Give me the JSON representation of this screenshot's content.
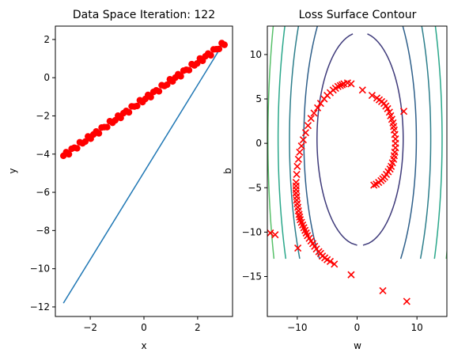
{
  "chart_data": [
    {
      "type": "scatter",
      "title": "Data Space Iteration: 122",
      "xlabel": "x",
      "ylabel": "y",
      "xlim": [
        -3.3,
        3.3
      ],
      "ylim": [
        -12.5,
        2.7
      ],
      "xticks": [
        -2,
        0,
        2
      ],
      "yticks": [
        -12,
        -10,
        -8,
        -6,
        -4,
        -2,
        0,
        2
      ],
      "grid": false,
      "colors": {
        "points": "#ff0000",
        "line": "#1f77b4"
      },
      "points": {
        "x_start": -3.0,
        "x_end": 3.0,
        "count": 60,
        "slope": 0.98,
        "intercept": -1.15,
        "noise_amplitude": 0.12
      },
      "fit_line": {
        "x": [
          -3.0,
          3.0
        ],
        "y": [
          -11.8,
          1.9
        ]
      }
    },
    {
      "type": "contour",
      "title": "Loss Surface Contour",
      "xlabel": "w",
      "ylabel": "b",
      "xlim": [
        -15,
        15
      ],
      "ylim": [
        -19.5,
        13.2
      ],
      "xticks": [
        -10,
        0,
        10
      ],
      "yticks": [
        -15,
        -10,
        -5,
        0,
        5,
        10
      ],
      "grid": false,
      "contour_center": [
        0.5,
        0.5
      ],
      "contour_levels": [
        {
          "a": 7.2,
          "b": 12.0,
          "color": "#3e3a7a"
        },
        {
          "a": 9.4,
          "b": 19.5,
          "color": "#2e5f8a"
        },
        {
          "a": 11.8,
          "b": 26.0,
          "color": "#2c7e8b"
        },
        {
          "a": 13.7,
          "b": 32.0,
          "color": "#29a78a"
        },
        {
          "a": 15.4,
          "b": 38.0,
          "color": "#57c069"
        },
        {
          "a": 16.8,
          "b": 44.0,
          "color": "#9fd34c"
        }
      ],
      "contour_b_range": [
        -13.0,
        13.2
      ],
      "marker": "x",
      "marker_color": "#ff0000",
      "trajectory": [
        {
          "w": 8.3,
          "b": -17.8
        },
        {
          "w": 4.3,
          "b": -16.6
        },
        {
          "w": -1.0,
          "b": -14.8
        },
        {
          "w": -3.8,
          "b": -13.6
        },
        {
          "w": -4.5,
          "b": -13.3
        },
        {
          "w": -5.0,
          "b": -13.1
        },
        {
          "w": -5.4,
          "b": -12.9
        },
        {
          "w": -5.8,
          "b": -12.7
        },
        {
          "w": -6.1,
          "b": -12.4
        },
        {
          "w": -6.4,
          "b": -12.2
        },
        {
          "w": -6.8,
          "b": -11.9
        },
        {
          "w": -7.1,
          "b": -11.6
        },
        {
          "w": -7.4,
          "b": -11.3
        },
        {
          "w": -7.7,
          "b": -11.0
        },
        {
          "w": -8.0,
          "b": -10.7
        },
        {
          "w": -8.3,
          "b": -10.4
        },
        {
          "w": -8.5,
          "b": -10.1
        },
        {
          "w": -8.7,
          "b": -9.8
        },
        {
          "w": -8.9,
          "b": -9.5
        },
        {
          "w": -9.1,
          "b": -9.2
        },
        {
          "w": -9.3,
          "b": -8.9
        },
        {
          "w": -9.5,
          "b": -8.6
        },
        {
          "w": -9.6,
          "b": -8.3
        },
        {
          "w": -9.7,
          "b": -8.0
        },
        {
          "w": -9.8,
          "b": -7.6
        },
        {
          "w": -9.9,
          "b": -7.2
        },
        {
          "w": -10.0,
          "b": -6.8
        },
        {
          "w": -10.1,
          "b": -6.4
        },
        {
          "w": -10.1,
          "b": -6.0
        },
        {
          "w": -10.2,
          "b": -5.6
        },
        {
          "w": -10.2,
          "b": -5.2
        },
        {
          "w": -10.2,
          "b": -4.8
        },
        {
          "w": -10.2,
          "b": -4.4
        },
        {
          "w": -10.1,
          "b": -3.5
        },
        {
          "w": -10.0,
          "b": -2.6
        },
        {
          "w": -9.8,
          "b": -1.8
        },
        {
          "w": -9.6,
          "b": -1.0
        },
        {
          "w": -9.3,
          "b": -0.3
        },
        {
          "w": -9.0,
          "b": 0.4
        },
        {
          "w": -8.6,
          "b": 1.2
        },
        {
          "w": -8.2,
          "b": 2.0
        },
        {
          "w": -7.7,
          "b": 2.8
        },
        {
          "w": -7.2,
          "b": 3.4
        },
        {
          "w": -6.6,
          "b": 4.0
        },
        {
          "w": -6.1,
          "b": 4.5
        },
        {
          "w": -5.5,
          "b": 5.0
        },
        {
          "w": -5.0,
          "b": 5.4
        },
        {
          "w": -4.5,
          "b": 5.7
        },
        {
          "w": -4.0,
          "b": 6.0
        },
        {
          "w": -3.6,
          "b": 6.2
        },
        {
          "w": -3.2,
          "b": 6.4
        },
        {
          "w": -2.8,
          "b": 6.5
        },
        {
          "w": -2.5,
          "b": 6.6
        },
        {
          "w": -2.2,
          "b": 6.7
        },
        {
          "w": -1.6,
          "b": 6.8
        },
        {
          "w": -1.0,
          "b": 6.7
        },
        {
          "w": 0.9,
          "b": 6.0
        },
        {
          "w": 2.5,
          "b": 5.4
        },
        {
          "w": 3.3,
          "b": 5.1
        },
        {
          "w": 3.7,
          "b": 4.9
        },
        {
          "w": 4.1,
          "b": 4.7
        },
        {
          "w": 4.5,
          "b": 4.5
        },
        {
          "w": 4.8,
          "b": 4.2
        },
        {
          "w": 5.1,
          "b": 3.9
        },
        {
          "w": 5.4,
          "b": 3.5
        },
        {
          "w": 5.6,
          "b": 3.1
        },
        {
          "w": 5.8,
          "b": 2.7
        },
        {
          "w": 6.0,
          "b": 2.3
        },
        {
          "w": 6.1,
          "b": 1.9
        },
        {
          "w": 6.2,
          "b": 1.5
        },
        {
          "w": 6.3,
          "b": 1.0
        },
        {
          "w": 6.4,
          "b": 0.5
        },
        {
          "w": 6.4,
          "b": 0.0
        },
        {
          "w": 6.4,
          "b": -0.5
        },
        {
          "w": 6.3,
          "b": -1.0
        },
        {
          "w": 6.2,
          "b": -1.4
        },
        {
          "w": 6.1,
          "b": -1.8
        },
        {
          "w": 5.9,
          "b": -2.2
        },
        {
          "w": 5.7,
          "b": -2.6
        },
        {
          "w": 5.5,
          "b": -2.9
        },
        {
          "w": 5.2,
          "b": -3.2
        },
        {
          "w": 4.9,
          "b": -3.5
        },
        {
          "w": 4.6,
          "b": -3.8
        },
        {
          "w": 4.3,
          "b": -4.0
        },
        {
          "w": 4.0,
          "b": -4.2
        },
        {
          "w": 3.6,
          "b": -4.4
        },
        {
          "w": 3.2,
          "b": -4.6
        },
        {
          "w": 2.8,
          "b": -4.7
        },
        {
          "w": 7.8,
          "b": 3.6
        },
        {
          "w": -14.5,
          "b": -10.1
        },
        {
          "w": -13.7,
          "b": -10.3
        },
        {
          "w": -9.9,
          "b": -11.8
        }
      ]
    }
  ]
}
